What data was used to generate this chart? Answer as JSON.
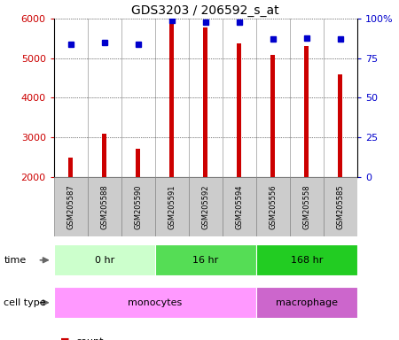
{
  "title": "GDS3203 / 206592_s_at",
  "samples": [
    "GSM205587",
    "GSM205588",
    "GSM205590",
    "GSM205591",
    "GSM205592",
    "GSM205594",
    "GSM205556",
    "GSM205558",
    "GSM205585"
  ],
  "counts": [
    2480,
    3100,
    2700,
    5980,
    5780,
    5380,
    5080,
    5300,
    4600
  ],
  "percentile_ranks": [
    84,
    85,
    84,
    99,
    98,
    98,
    87,
    88,
    87
  ],
  "ylim_left": [
    2000,
    6000
  ],
  "ylim_right": [
    0,
    100
  ],
  "yticks_left": [
    2000,
    3000,
    4000,
    5000,
    6000
  ],
  "yticks_right": [
    0,
    25,
    50,
    75,
    100
  ],
  "ytick_right_labels": [
    "0",
    "25",
    "50",
    "75",
    "100%"
  ],
  "time_groups": [
    {
      "label": "0 hr",
      "start": 0,
      "end": 3,
      "color": "#ccffcc"
    },
    {
      "label": "16 hr",
      "start": 3,
      "end": 6,
      "color": "#55dd55"
    },
    {
      "label": "168 hr",
      "start": 6,
      "end": 9,
      "color": "#22cc22"
    }
  ],
  "cell_type_groups": [
    {
      "label": "monocytes",
      "start": 0,
      "end": 6,
      "color": "#ff99ff"
    },
    {
      "label": "macrophage",
      "start": 6,
      "end": 9,
      "color": "#cc66cc"
    }
  ],
  "bar_color": "#cc0000",
  "dot_color": "#0000cc",
  "bar_width": 0.12,
  "legend_count_color": "#cc0000",
  "legend_pct_color": "#0000cc",
  "background_color": "#ffffff",
  "sample_label_bg": "#cccccc",
  "sample_label_border": "#888888"
}
